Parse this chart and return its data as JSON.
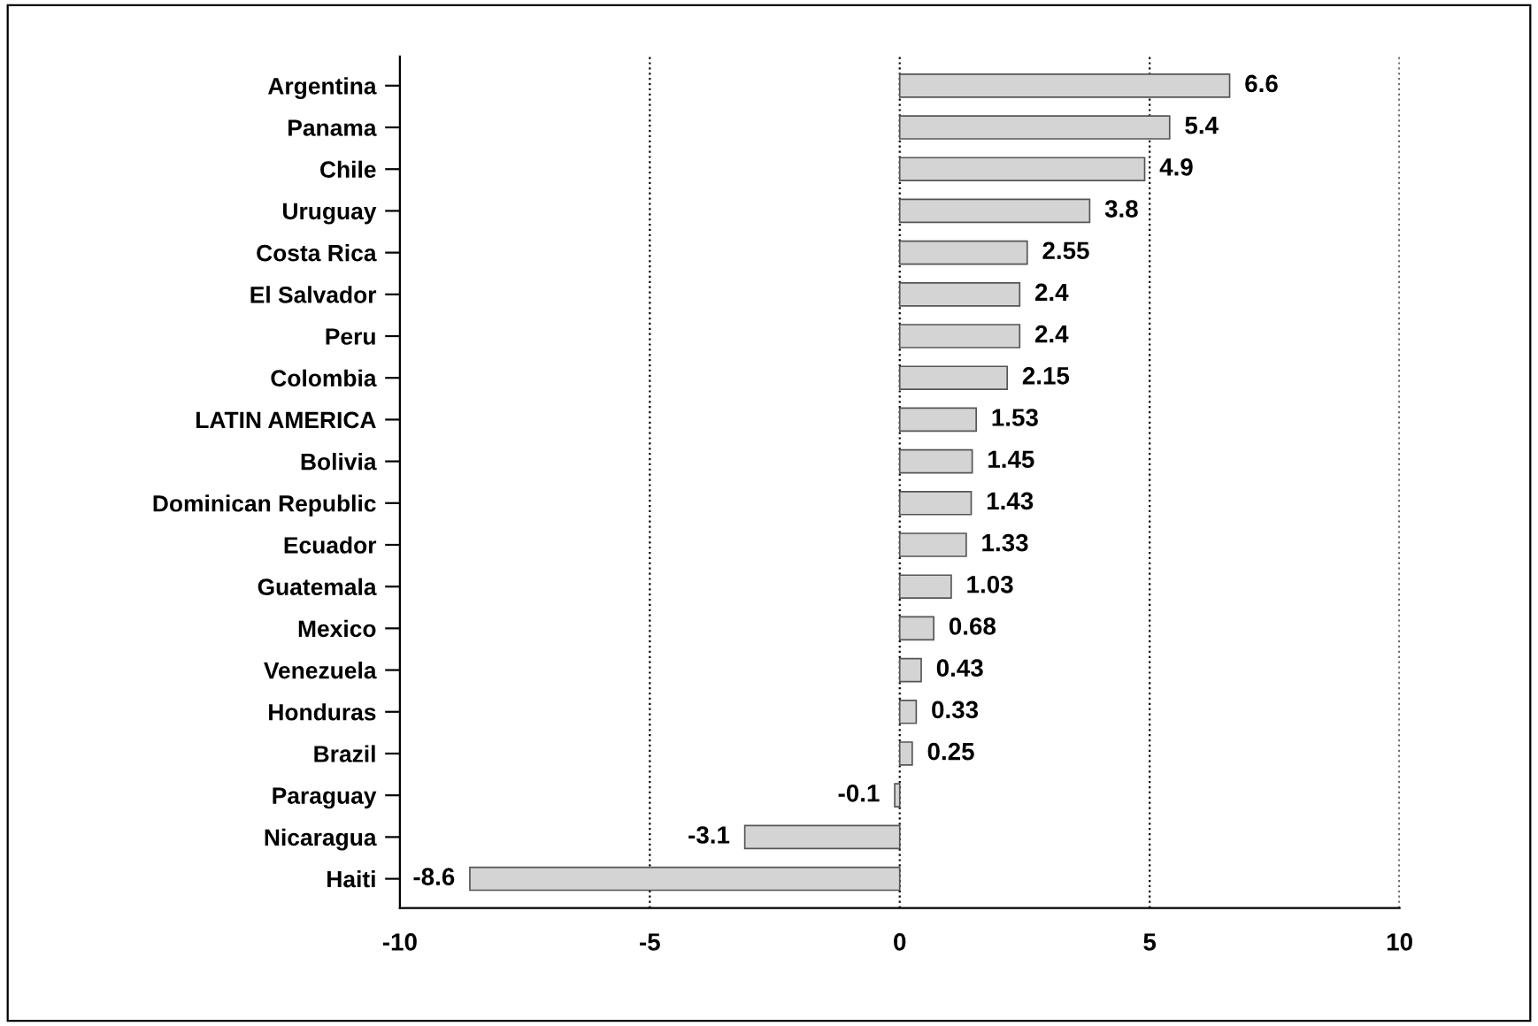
{
  "chart_data": {
    "type": "bar",
    "orientation": "horizontal",
    "categories": [
      "Argentina",
      "Panama",
      "Chile",
      "Uruguay",
      "Costa Rica",
      "El Salvador",
      "Peru",
      "Colombia",
      "LATIN AMERICA",
      "Bolivia",
      "Dominican Republic",
      "Ecuador",
      "Guatemala",
      "Mexico",
      "Venezuela",
      "Honduras",
      "Brazil",
      "Paraguay",
      "Nicaragua",
      "Haiti"
    ],
    "values": [
      6.6,
      5.4,
      4.9,
      3.8,
      2.55,
      2.4,
      2.4,
      2.15,
      1.53,
      1.45,
      1.43,
      1.33,
      1.03,
      0.68,
      0.43,
      0.33,
      0.25,
      -0.1,
      -3.1,
      -8.6
    ],
    "color": "#d4d4d4",
    "xlim": [
      -10,
      10
    ],
    "xticks": [
      -10,
      -5,
      0,
      5,
      10
    ],
    "grid": "x",
    "data_labels": true
  }
}
